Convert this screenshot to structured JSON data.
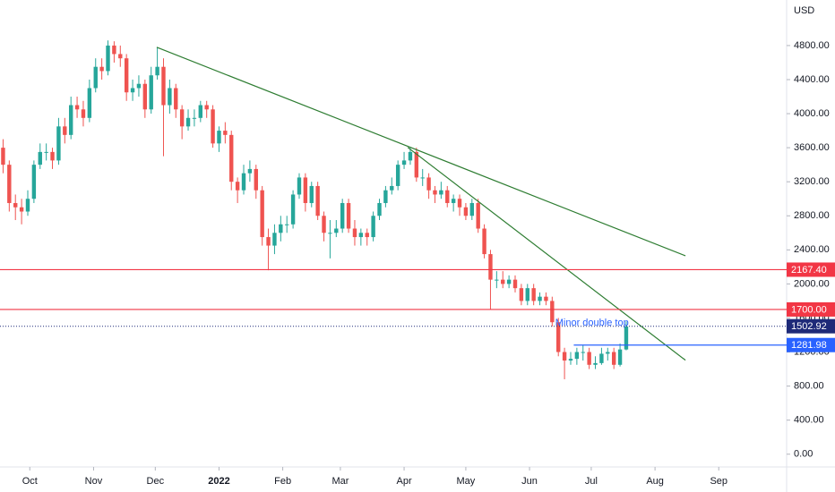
{
  "chart_data": {
    "type": "candlestick",
    "y_axis_label": "USD",
    "up_color": "#26a69a",
    "down_color": "#ef5350",
    "grid": false,
    "xlim": [
      -0.5,
      127
    ],
    "ylim": [
      -150,
      5335
    ],
    "yticks": [
      {
        "value": 0,
        "label": "0.00"
      },
      {
        "value": 400,
        "label": "400.00"
      },
      {
        "value": 800,
        "label": "800.00"
      },
      {
        "value": 1200,
        "label": "1200.00"
      },
      {
        "value": 1600,
        "label": "1600.00"
      },
      {
        "value": 2000,
        "label": "2000.00"
      },
      {
        "value": 2400,
        "label": "2400.00"
      },
      {
        "value": 2800,
        "label": "2800.00"
      },
      {
        "value": 3200,
        "label": "3200.00"
      },
      {
        "value": 3600,
        "label": "3600.00"
      },
      {
        "value": 4000,
        "label": "4000.00"
      },
      {
        "value": 4400,
        "label": "4400.00"
      },
      {
        "value": 4800,
        "label": "4800.00"
      }
    ],
    "xticks": [
      {
        "value": 4.33,
        "label": "Oct"
      },
      {
        "value": 14.67,
        "label": "Nov"
      },
      {
        "value": 24.67,
        "label": "Dec"
      },
      {
        "value": 35,
        "label": "2022"
      },
      {
        "value": 45.33,
        "label": "Feb"
      },
      {
        "value": 54.67,
        "label": "Mar"
      },
      {
        "value": 65,
        "label": "Apr"
      },
      {
        "value": 75,
        "label": "May"
      },
      {
        "value": 85.33,
        "label": "Jun"
      },
      {
        "value": 95.33,
        "label": "Jul"
      },
      {
        "value": 105.67,
        "label": "Aug"
      },
      {
        "value": 116,
        "label": "Sep"
      }
    ],
    "open": [
      3600,
      3400,
      2950,
      2900,
      2850,
      3000,
      3400,
      3550,
      3550,
      3450,
      3850,
      3750,
      4100,
      4050,
      3950,
      4300,
      4550,
      4500,
      4800,
      4700,
      4650,
      4250,
      4300,
      4350,
      4050,
      4450,
      4550,
      4100,
      4300,
      4050,
      3850,
      3950,
      3950,
      4100,
      4050,
      3650,
      3800,
      3750,
      3200,
      3100,
      3300,
      3350,
      3100,
      2550,
      2450,
      2600,
      2700,
      2700,
      3050,
      3250,
      2950,
      3150,
      2800,
      2600,
      2600,
      2650,
      2950,
      2650,
      2550,
      2600,
      2550,
      2800,
      2950,
      3100,
      3150,
      3400,
      3450,
      3550,
      3250,
      3250,
      3100,
      3050,
      3100,
      2950,
      3000,
      2900,
      2800,
      2950,
      2650,
      2350,
      2050,
      2050,
      2000,
      2050,
      1950,
      1800,
      1950,
      1800,
      1850,
      1800,
      1550,
      1200,
      1100,
      1120,
      1200,
      1200,
      1050,
      1070,
      1180,
      1200,
      1050,
      1230
    ],
    "high": [
      3700,
      3450,
      3050,
      3000,
      3100,
      3450,
      3650,
      3650,
      3600,
      3950,
      3950,
      4200,
      4200,
      4150,
      4400,
      4650,
      4650,
      4860,
      4850,
      4800,
      4700,
      4400,
      4450,
      4400,
      4550,
      4780,
      4650,
      4400,
      4350,
      4100,
      4050,
      4050,
      4150,
      4150,
      4100,
      3850,
      3900,
      3800,
      3250,
      3400,
      3450,
      3400,
      3150,
      2650,
      2700,
      2800,
      2800,
      3100,
      3300,
      3300,
      3200,
      3200,
      2850,
      2750,
      2750,
      3000,
      3000,
      2750,
      2650,
      2650,
      2850,
      3000,
      3150,
      3250,
      3450,
      3550,
      3600,
      3600,
      3350,
      3300,
      3150,
      3200,
      3150,
      3050,
      3050,
      2950,
      3000,
      3000,
      2700,
      2400,
      2150,
      2150,
      2100,
      2100,
      2000,
      2000,
      2000,
      1900,
      1900,
      1850,
      1600,
      1250,
      1200,
      1250,
      1280,
      1250,
      1150,
      1250,
      1250,
      1250,
      1300,
      1560
    ],
    "low": [
      3300,
      2850,
      2750,
      2700,
      2800,
      2950,
      3350,
      3450,
      3350,
      3400,
      3650,
      3700,
      3950,
      3850,
      3900,
      4250,
      4400,
      4450,
      4600,
      4550,
      4150,
      4150,
      4200,
      3950,
      4000,
      4400,
      3500,
      4000,
      3950,
      3700,
      3800,
      3850,
      3900,
      3950,
      3600,
      3550,
      3650,
      3100,
      2950,
      3050,
      3200,
      3000,
      2450,
      2160,
      2350,
      2500,
      2600,
      2650,
      3000,
      2850,
      2900,
      2750,
      2500,
      2300,
      2550,
      2600,
      2600,
      2450,
      2450,
      2450,
      2500,
      2750,
      2900,
      3050,
      3100,
      3350,
      3400,
      3200,
      3150,
      3000,
      2950,
      3000,
      2900,
      2850,
      2800,
      2750,
      2750,
      2600,
      2300,
      1700,
      1950,
      1950,
      1950,
      1900,
      1750,
      1750,
      1750,
      1750,
      1750,
      1500,
      1150,
      880,
      1050,
      1050,
      1100,
      1000,
      1000,
      1050,
      1100,
      1000,
      1030,
      1220
    ],
    "close": [
      3400,
      2950,
      2900,
      2850,
      3000,
      3400,
      3550,
      3550,
      3450,
      3850,
      3750,
      4100,
      4050,
      3950,
      4300,
      4550,
      4500,
      4800,
      4700,
      4650,
      4250,
      4300,
      4350,
      4050,
      4450,
      4550,
      4100,
      4300,
      4050,
      3850,
      3950,
      3950,
      4100,
      4050,
      3650,
      3800,
      3750,
      3200,
      3100,
      3300,
      3350,
      3100,
      2550,
      2450,
      2600,
      2700,
      2700,
      3050,
      3250,
      2950,
      3150,
      2800,
      2600,
      2600,
      2650,
      2950,
      2650,
      2550,
      2600,
      2550,
      2800,
      2950,
      3100,
      3150,
      3400,
      3450,
      3550,
      3250,
      3250,
      3100,
      3050,
      3100,
      2950,
      3000,
      2900,
      2800,
      2950,
      2650,
      2350,
      2050,
      2050,
      2000,
      2050,
      1950,
      1800,
      1950,
      1800,
      1850,
      1800,
      1550,
      1200,
      1100,
      1120,
      1200,
      1200,
      1050,
      1070,
      1180,
      1200,
      1050,
      1230,
      1500
    ],
    "price_lines": [
      {
        "value": 2167.4,
        "label": "2167.40",
        "color": "#f23645",
        "style": "solid"
      },
      {
        "value": 1700,
        "label": "1700.00",
        "color": "#f23645",
        "style": "solid"
      },
      {
        "value": 1502.92,
        "label": "1502.92",
        "color": "#1e2a78",
        "style": "dotted"
      },
      {
        "value": 1281.98,
        "label": "1281.98",
        "color": "#2962ff",
        "style": "solid",
        "from_x": 92.5
      }
    ],
    "trendlines": [
      {
        "x": [
          24.9,
          110.6
        ],
        "y": [
          4780,
          2330
        ],
        "color": "#2e7d32"
      },
      {
        "x": [
          65.6,
          110.6
        ],
        "y": [
          3603,
          1104
        ],
        "color": "#2e7d32"
      }
    ],
    "annotations": [
      {
        "text": "Minor double top",
        "x": 89.5,
        "y": 1540,
        "color": "#2962ff"
      }
    ]
  }
}
